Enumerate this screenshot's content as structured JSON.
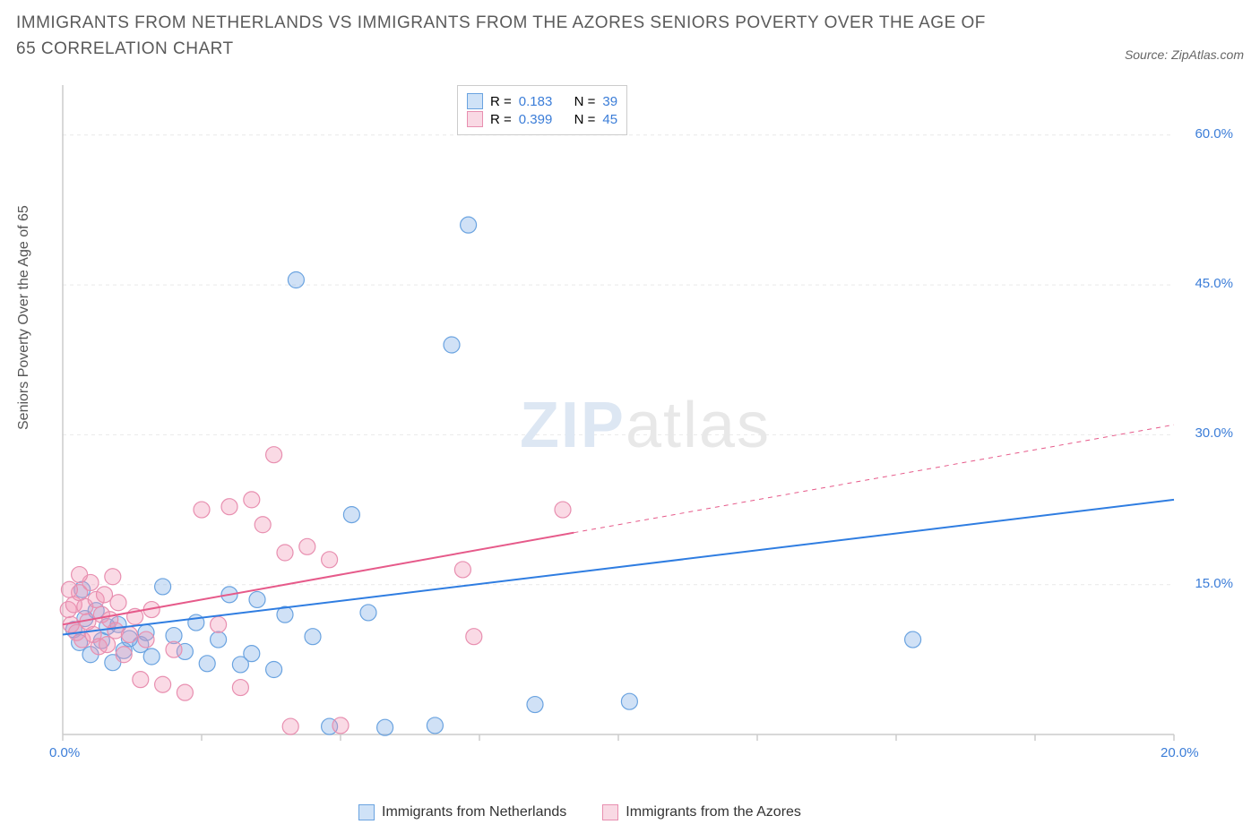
{
  "title": "IMMIGRANTS FROM NETHERLANDS VS IMMIGRANTS FROM THE AZORES SENIORS POVERTY OVER THE AGE OF 65 CORRELATION CHART",
  "source_label": "Source: ZipAtlas.com",
  "ylabel": "Seniors Poverty Over the Age of 65",
  "watermark_a": "ZIP",
  "watermark_b": "atlas",
  "chart": {
    "type": "scatter",
    "plot_bg": "#ffffff",
    "grid_color": "#e9e9e9",
    "axis_color": "#cccccc",
    "xlim": [
      0,
      20
    ],
    "ylim": [
      0,
      65
    ],
    "xticks": [
      0,
      2.5,
      5,
      7.5,
      10,
      12.5,
      15,
      17.5,
      20
    ],
    "xtick_labels": {
      "0": "0.0%",
      "20": "20.0%"
    },
    "yticks": [
      15,
      30,
      45,
      60
    ],
    "ytick_labels": {
      "15": "15.0%",
      "30": "30.0%",
      "45": "45.0%",
      "60": "60.0%"
    },
    "series": [
      {
        "id": "netherlands",
        "label": "Immigrants from Netherlands",
        "color_fill": "rgba(120,170,230,0.35)",
        "color_stroke": "#6aa3e0",
        "swatch_fill": "#cfe2f7",
        "swatch_border": "#6aa3e0",
        "R": "0.183",
        "N": "39",
        "marker_radius": 9,
        "trend": {
          "x1": 0,
          "y1": 10,
          "x2": 20,
          "y2": 23.5,
          "solid_until_x": 20,
          "color": "#2f7de1",
          "width": 2
        },
        "points": [
          [
            0.2,
            10.5
          ],
          [
            0.3,
            9.2
          ],
          [
            0.4,
            11.6
          ],
          [
            0.5,
            8.0
          ],
          [
            0.6,
            12.4
          ],
          [
            0.7,
            9.4
          ],
          [
            0.8,
            10.8
          ],
          [
            0.9,
            7.2
          ],
          [
            1.0,
            11.0
          ],
          [
            1.1,
            8.4
          ],
          [
            1.2,
            9.6
          ],
          [
            1.4,
            9.0
          ],
          [
            1.5,
            10.2
          ],
          [
            1.6,
            7.8
          ],
          [
            1.8,
            14.8
          ],
          [
            2.0,
            9.9
          ],
          [
            2.2,
            8.3
          ],
          [
            2.4,
            11.2
          ],
          [
            2.6,
            7.1
          ],
          [
            2.8,
            9.5
          ],
          [
            3.0,
            14.0
          ],
          [
            3.2,
            7.0
          ],
          [
            3.4,
            8.1
          ],
          [
            3.5,
            13.5
          ],
          [
            3.8,
            6.5
          ],
          [
            4.0,
            12.0
          ],
          [
            4.2,
            45.5
          ],
          [
            4.5,
            9.8
          ],
          [
            4.8,
            0.8
          ],
          [
            5.2,
            22.0
          ],
          [
            5.5,
            12.2
          ],
          [
            5.8,
            0.7
          ],
          [
            6.7,
            0.9
          ],
          [
            7.0,
            39.0
          ],
          [
            7.3,
            51.0
          ],
          [
            8.5,
            3.0
          ],
          [
            10.2,
            3.3
          ],
          [
            15.3,
            9.5
          ],
          [
            0.35,
            14.5
          ]
        ]
      },
      {
        "id": "azores",
        "label": "Immigrants from the Azores",
        "color_fill": "rgba(240,150,180,0.35)",
        "color_stroke": "#e88fb0",
        "swatch_fill": "#f9d9e4",
        "swatch_border": "#e88fb0",
        "R": "0.399",
        "N": "45",
        "marker_radius": 9,
        "trend": {
          "x1": 0,
          "y1": 11,
          "x2": 20,
          "y2": 31,
          "solid_until_x": 9.2,
          "color": "#e65a8a",
          "width": 2
        },
        "points": [
          [
            0.1,
            12.5
          ],
          [
            0.15,
            11.0
          ],
          [
            0.2,
            13.0
          ],
          [
            0.25,
            10.2
          ],
          [
            0.3,
            14.2
          ],
          [
            0.35,
            9.5
          ],
          [
            0.4,
            12.8
          ],
          [
            0.45,
            11.3
          ],
          [
            0.5,
            15.2
          ],
          [
            0.55,
            10.0
          ],
          [
            0.6,
            13.5
          ],
          [
            0.65,
            8.8
          ],
          [
            0.7,
            12.0
          ],
          [
            0.75,
            14.0
          ],
          [
            0.8,
            9.0
          ],
          [
            0.85,
            11.5
          ],
          [
            0.9,
            15.8
          ],
          [
            0.95,
            10.4
          ],
          [
            1.0,
            13.2
          ],
          [
            1.1,
            8.0
          ],
          [
            1.2,
            10.0
          ],
          [
            1.3,
            11.8
          ],
          [
            1.4,
            5.5
          ],
          [
            1.5,
            9.5
          ],
          [
            1.6,
            12.5
          ],
          [
            1.8,
            5.0
          ],
          [
            2.0,
            8.5
          ],
          [
            2.2,
            4.2
          ],
          [
            2.5,
            22.5
          ],
          [
            2.8,
            11.0
          ],
          [
            3.0,
            22.8
          ],
          [
            3.2,
            4.7
          ],
          [
            3.4,
            23.5
          ],
          [
            3.6,
            21.0
          ],
          [
            3.8,
            28.0
          ],
          [
            4.0,
            18.2
          ],
          [
            4.1,
            0.8
          ],
          [
            4.4,
            18.8
          ],
          [
            4.8,
            17.5
          ],
          [
            5.0,
            0.9
          ],
          [
            7.2,
            16.5
          ],
          [
            7.4,
            9.8
          ],
          [
            9.0,
            22.5
          ],
          [
            0.3,
            16.0
          ],
          [
            0.12,
            14.5
          ]
        ]
      }
    ]
  },
  "legend_top": {
    "r_label": "R =",
    "n_label": "N ="
  }
}
